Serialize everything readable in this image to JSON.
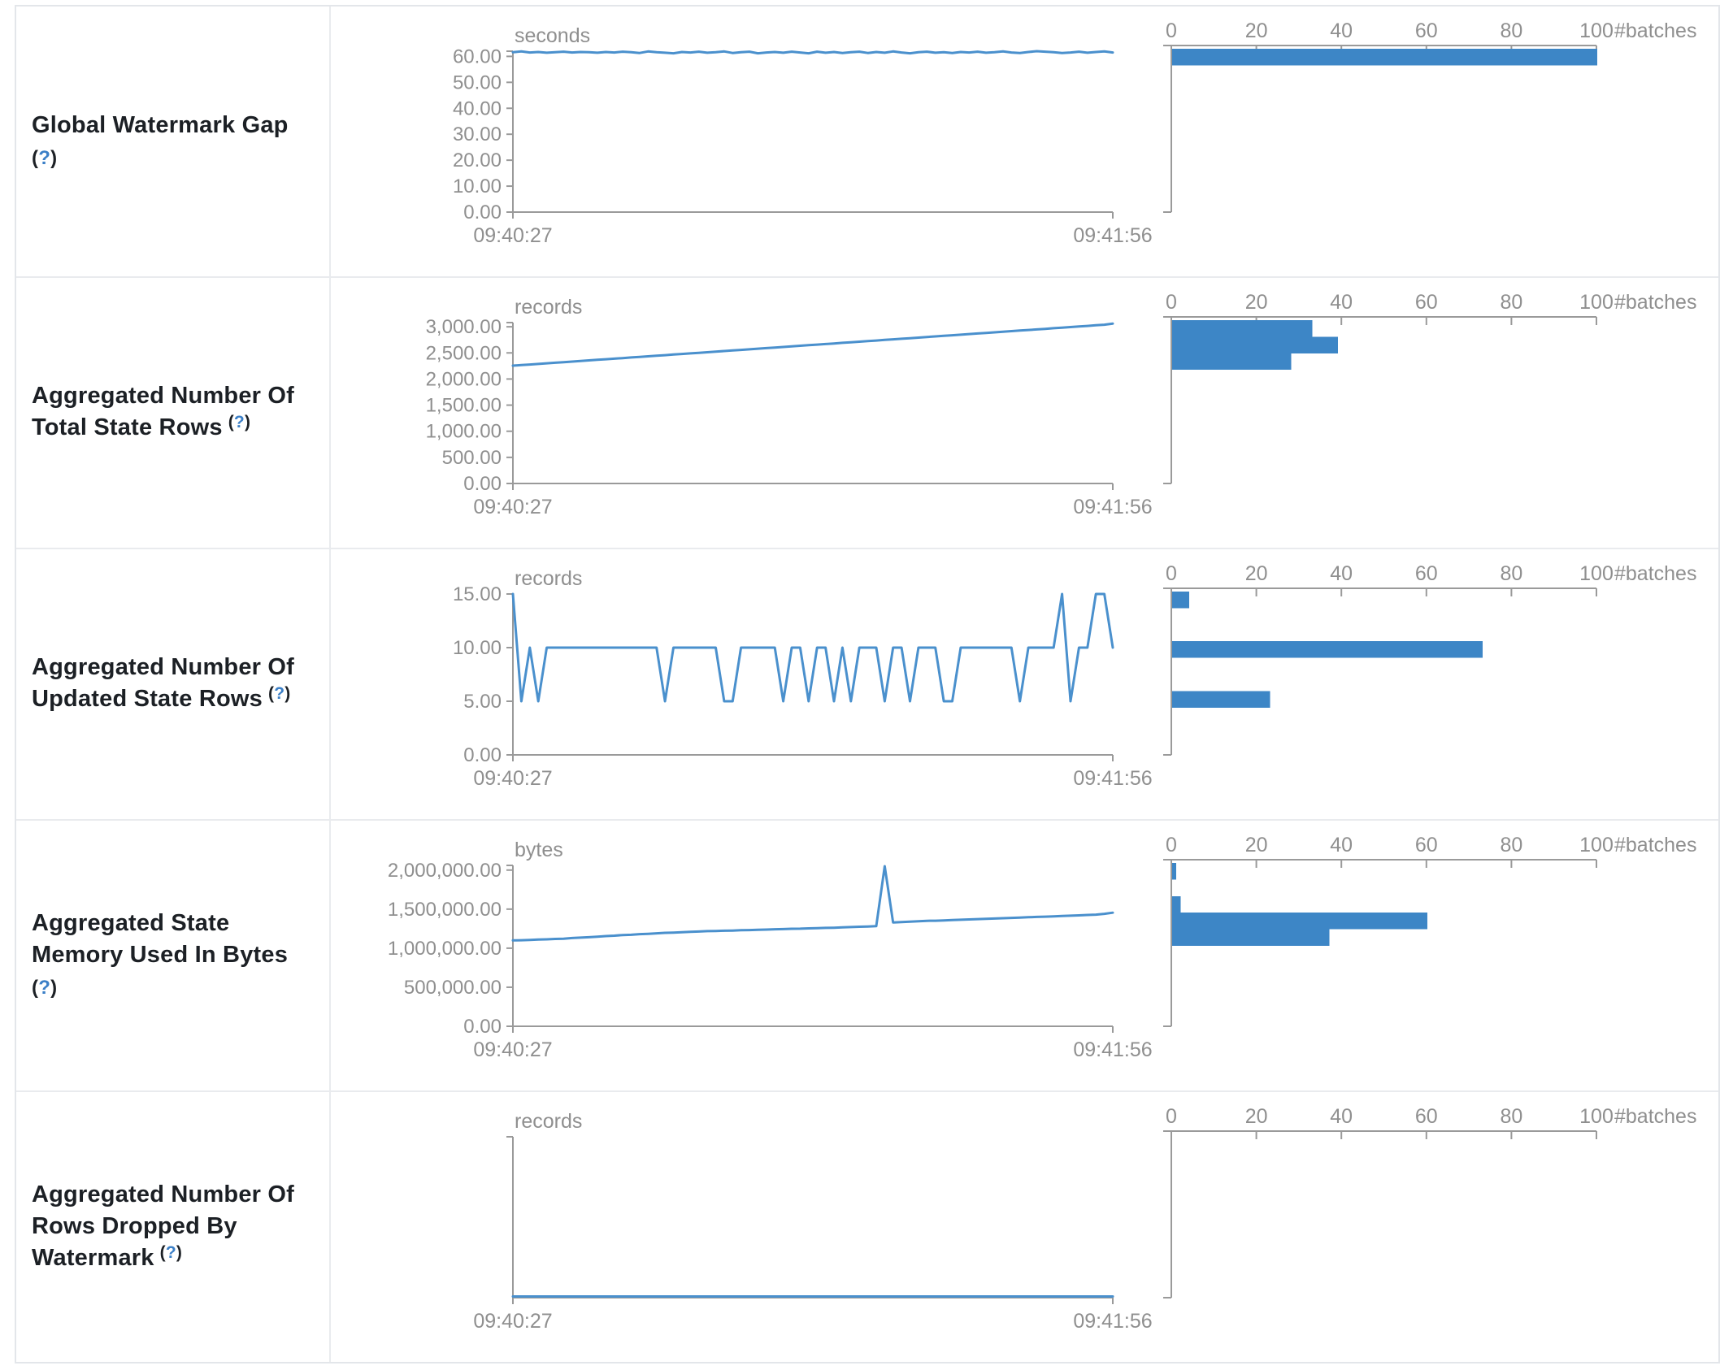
{
  "colors": {
    "accent_line": "#4a90cd",
    "accent_bar": "#3d86c6",
    "axis_stroke": "#9a9a9a",
    "axis_text": "#8f8f8f",
    "label_text": "#1c2025",
    "help_blue": "#3b7fc7",
    "border": "#e3e6ea"
  },
  "x_axis": {
    "start_label": "09:40:27",
    "end_label": "09:41:56"
  },
  "histogram_axis": {
    "tick_labels": [
      "0",
      "20",
      "40",
      "60",
      "80",
      "100"
    ],
    "tick_values": [
      0,
      20,
      40,
      60,
      80,
      100
    ],
    "max": 100,
    "unit": "#batches"
  },
  "chart_data": {
    "note": "see rows[].timeline and rows[].histogram"
  },
  "rows": [
    {
      "label_lines": [
        "Global Watermark Gap"
      ],
      "help": "(?)",
      "help_inline": false,
      "timeline": {
        "type": "line",
        "unit": "seconds",
        "ymax": 62,
        "yticks": [
          {
            "v": 60,
            "label": "60.00"
          },
          {
            "v": 50,
            "label": "50.00"
          },
          {
            "v": 40,
            "label": "40.00"
          },
          {
            "v": 30,
            "label": "30.00"
          },
          {
            "v": 20,
            "label": "20.00"
          },
          {
            "v": 10,
            "label": "10.00"
          },
          {
            "v": 0,
            "label": "0.00"
          }
        ],
        "values": [
          61.6,
          61.9,
          61.5,
          61.7,
          61.4,
          61.6,
          61.8,
          61.5,
          61.7,
          61.6,
          61.4,
          61.7,
          61.5,
          61.8,
          61.6,
          61.3,
          61.9,
          61.6,
          61.4,
          61.2,
          61.7,
          61.5,
          61.8,
          61.4,
          61.6,
          61.9,
          61.3,
          61.6,
          61.8,
          61.2,
          61.5,
          61.7,
          61.4,
          61.8,
          61.5,
          61.2,
          61.8,
          61.4,
          61.7,
          61.3,
          61.6,
          61.8,
          61.3,
          61.7,
          61.4,
          61.9,
          61.5,
          61.2,
          61.6,
          61.8,
          61.4,
          61.6,
          61.3,
          61.7,
          61.5,
          61.8,
          61.4,
          61.6,
          61.9,
          61.5,
          61.3,
          61.7,
          62.0,
          61.8,
          61.6,
          61.3,
          61.5,
          61.8,
          61.4,
          61.7,
          61.9,
          61.5
        ]
      },
      "histogram": {
        "type": "bar",
        "bars": [
          {
            "bin": 0,
            "count": 100
          }
        ]
      }
    },
    {
      "label_lines": [
        "Aggregated Number Of",
        "Total State Rows"
      ],
      "help": "(?)",
      "help_inline": true,
      "timeline": {
        "type": "line",
        "unit": "records",
        "ymax": 3080,
        "yticks": [
          {
            "v": 3000,
            "label": "3,000.00"
          },
          {
            "v": 2500,
            "label": "2,500.00"
          },
          {
            "v": 2000,
            "label": "2,000.00"
          },
          {
            "v": 1500,
            "label": "1,500.00"
          },
          {
            "v": 1000,
            "label": "1,000.00"
          },
          {
            "v": 500,
            "label": "500.00"
          },
          {
            "v": 0,
            "label": "0.00"
          }
        ],
        "values": [
          2255,
          2266,
          2277,
          2288,
          2300,
          2311,
          2322,
          2333,
          2344,
          2356,
          2367,
          2378,
          2389,
          2400,
          2412,
          2423,
          2434,
          2445,
          2456,
          2468,
          2479,
          2490,
          2501,
          2512,
          2524,
          2535,
          2546,
          2557,
          2568,
          2580,
          2591,
          2602,
          2613,
          2624,
          2636,
          2647,
          2658,
          2669,
          2680,
          2692,
          2703,
          2714,
          2725,
          2736,
          2748,
          2759,
          2770,
          2781,
          2792,
          2804,
          2815,
          2826,
          2837,
          2848,
          2860,
          2871,
          2882,
          2893,
          2904,
          2916,
          2927,
          2938,
          2949,
          2960,
          2972,
          2983,
          2994,
          3005,
          3016,
          3028,
          3039,
          3060
        ]
      },
      "histogram": {
        "type": "bar",
        "bars": [
          {
            "bin": 0,
            "count": 33
          },
          {
            "bin": 1,
            "count": 39
          },
          {
            "bin": 2,
            "count": 28
          }
        ]
      }
    },
    {
      "label_lines": [
        "Aggregated Number Of",
        "Updated State Rows"
      ],
      "help": "(?)",
      "help_inline": true,
      "timeline": {
        "type": "line",
        "unit": "records",
        "ymax": 15,
        "yticks": [
          {
            "v": 15,
            "label": "15.00"
          },
          {
            "v": 10,
            "label": "10.00"
          },
          {
            "v": 5,
            "label": "5.00"
          },
          {
            "v": 0,
            "label": "0.00"
          }
        ],
        "values": [
          15,
          5,
          10,
          5,
          10,
          10,
          10,
          10,
          10,
          10,
          10,
          10,
          10,
          10,
          10,
          10,
          10,
          10,
          5,
          10,
          10,
          10,
          10,
          10,
          10,
          5,
          5,
          10,
          10,
          10,
          10,
          10,
          5,
          10,
          10,
          5,
          10,
          10,
          5,
          10,
          5,
          10,
          10,
          10,
          5,
          10,
          10,
          5,
          10,
          10,
          10,
          5,
          5,
          10,
          10,
          10,
          10,
          10,
          10,
          10,
          5,
          10,
          10,
          10,
          10,
          15,
          5,
          10,
          10,
          15,
          15,
          10
        ]
      },
      "histogram": {
        "type": "bar",
        "bars": [
          {
            "bin": 0,
            "count": 4
          },
          {
            "bin": 3,
            "count": 73
          },
          {
            "bin": 6,
            "count": 23
          }
        ]
      }
    },
    {
      "label_lines": [
        "Aggregated State",
        "Memory Used In Bytes"
      ],
      "help": "(?)",
      "help_inline": false,
      "timeline": {
        "type": "line",
        "unit": "bytes",
        "ymax": 2060000,
        "yticks": [
          {
            "v": 2000000,
            "label": "2,000,000.00"
          },
          {
            "v": 1500000,
            "label": "1,500,000.00"
          },
          {
            "v": 1000000,
            "label": "1,000,000.00"
          },
          {
            "v": 500000,
            "label": "500,000.00"
          },
          {
            "v": 0,
            "label": "0.00"
          }
        ],
        "values": [
          1100000,
          1102000,
          1105000,
          1110000,
          1113000,
          1118000,
          1122000,
          1130000,
          1135000,
          1140000,
          1148000,
          1155000,
          1160000,
          1168000,
          1172000,
          1180000,
          1184000,
          1190000,
          1196000,
          1200000,
          1205000,
          1210000,
          1213000,
          1218000,
          1220000,
          1224000,
          1226000,
          1230000,
          1232000,
          1236000,
          1238000,
          1242000,
          1244000,
          1248000,
          1250000,
          1254000,
          1256000,
          1260000,
          1262000,
          1266000,
          1270000,
          1274000,
          1278000,
          1282000,
          2050000,
          1330000,
          1335000,
          1340000,
          1345000,
          1350000,
          1352000,
          1356000,
          1360000,
          1364000,
          1368000,
          1372000,
          1376000,
          1380000,
          1384000,
          1388000,
          1392000,
          1396000,
          1400000,
          1404000,
          1408000,
          1412000,
          1416000,
          1420000,
          1425000,
          1430000,
          1440000,
          1455000
        ]
      },
      "histogram": {
        "type": "bar",
        "bars": [
          {
            "bin": 0,
            "count": 1
          },
          {
            "bin": 2,
            "count": 2
          },
          {
            "bin": 3,
            "count": 60
          },
          {
            "bin": 4,
            "count": 37
          }
        ]
      }
    },
    {
      "label_lines": [
        "Aggregated Number Of",
        "Rows Dropped By",
        "Watermark"
      ],
      "help": "(?)",
      "help_inline": true,
      "timeline": {
        "type": "line",
        "unit": "records",
        "ymax": 1,
        "yticks": [],
        "values": [
          0,
          0
        ]
      },
      "histogram": {
        "type": "bar",
        "bars": []
      }
    }
  ]
}
